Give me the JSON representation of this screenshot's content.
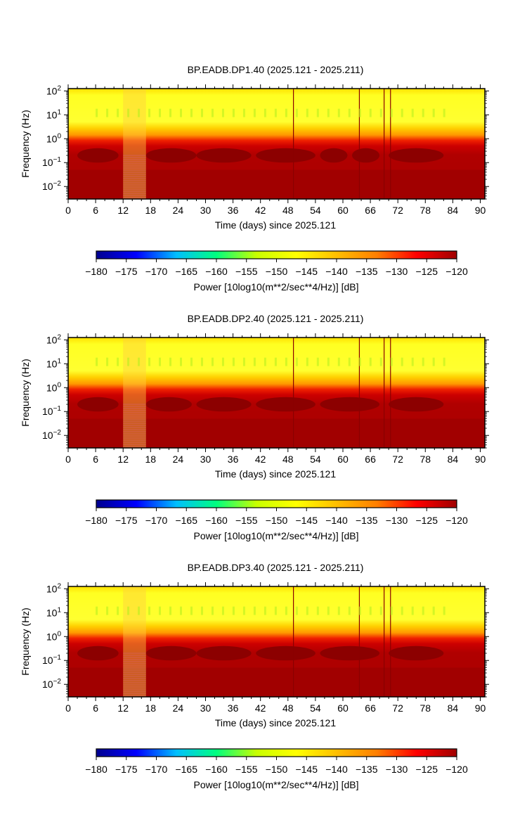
{
  "chart_data": [
    {
      "type": "heatmap",
      "title": "BP.EADB.DP1.40 (2025.121 - 2025.211)",
      "xlabel": "Time (days) since 2025.121",
      "ylabel": "Frequency (Hz)",
      "xlim": [
        0,
        91
      ],
      "x_ticks": [
        0,
        6,
        12,
        18,
        24,
        30,
        36,
        42,
        48,
        54,
        60,
        66,
        72,
        78,
        84,
        90
      ],
      "y_scale": "log",
      "ylim": [
        0.003,
        125
      ],
      "y_ticks": [
        {
          "mantissa": "10",
          "exp": "2",
          "value": 100
        },
        {
          "mantissa": "10",
          "exp": "1",
          "value": 10
        },
        {
          "mantissa": "10",
          "exp": "0",
          "value": 1
        },
        {
          "mantissa": "10",
          "exp": "−1",
          "value": 0.1
        },
        {
          "mantissa": "10",
          "exp": "−2",
          "value": 0.01
        }
      ],
      "microseism_band": [
        {
          "start": 2,
          "end": 11,
          "level": "dark"
        },
        {
          "start": 12,
          "end": 17,
          "level": "gap"
        },
        {
          "start": 17,
          "end": 28,
          "level": "dark"
        },
        {
          "start": 28,
          "end": 40,
          "level": "dark"
        },
        {
          "start": 41,
          "end": 54,
          "level": "dark"
        },
        {
          "start": 55,
          "end": 61,
          "level": "dark"
        },
        {
          "start": 62,
          "end": 68,
          "level": "dark"
        },
        {
          "start": 70,
          "end": 82,
          "level": "dark"
        }
      ],
      "colorbar": {
        "label": "Power [10log10(m**2/sec**4/Hz)] [dB]",
        "range": [
          -180,
          -120
        ],
        "ticks": [
          "−180",
          "−175",
          "−170",
          "−165",
          "−160",
          "−155",
          "−150",
          "−145",
          "−140",
          "−135",
          "−130",
          "−125",
          "−120"
        ],
        "colormap": [
          "#00008f",
          "#0000ff",
          "#00bfff",
          "#00ff7f",
          "#c8ff00",
          "#ffff00",
          "#ffbf00",
          "#ff7f00",
          "#ff0000",
          "#a00000"
        ]
      }
    },
    {
      "type": "heatmap",
      "title": "BP.EADB.DP2.40 (2025.121 - 2025.211)",
      "xlabel": "Time (days) since 2025.121",
      "ylabel": "Frequency (Hz)",
      "xlim": [
        0,
        91
      ],
      "x_ticks": [
        0,
        6,
        12,
        18,
        24,
        30,
        36,
        42,
        48,
        54,
        60,
        66,
        72,
        78,
        84,
        90
      ],
      "y_scale": "log",
      "ylim": [
        0.003,
        125
      ],
      "y_ticks": [
        {
          "mantissa": "10",
          "exp": "2",
          "value": 100
        },
        {
          "mantissa": "10",
          "exp": "1",
          "value": 10
        },
        {
          "mantissa": "10",
          "exp": "0",
          "value": 1
        },
        {
          "mantissa": "10",
          "exp": "−1",
          "value": 0.1
        },
        {
          "mantissa": "10",
          "exp": "−2",
          "value": 0.01
        }
      ],
      "microseism_band": [
        {
          "start": 2,
          "end": 11,
          "level": "dark"
        },
        {
          "start": 12,
          "end": 17,
          "level": "gap"
        },
        {
          "start": 17,
          "end": 27,
          "level": "dark"
        },
        {
          "start": 28,
          "end": 40,
          "level": "dark"
        },
        {
          "start": 41,
          "end": 54,
          "level": "dark"
        },
        {
          "start": 55,
          "end": 68,
          "level": "dark"
        },
        {
          "start": 70,
          "end": 82,
          "level": "dark"
        }
      ],
      "colorbar": {
        "label": "Power [10log10(m**2/sec**4/Hz)] [dB]",
        "range": [
          -180,
          -120
        ],
        "ticks": [
          "−180",
          "−175",
          "−170",
          "−165",
          "−160",
          "−155",
          "−150",
          "−145",
          "−140",
          "−135",
          "−130",
          "−125",
          "−120"
        ],
        "colormap": [
          "#00008f",
          "#0000ff",
          "#00bfff",
          "#00ff7f",
          "#c8ff00",
          "#ffff00",
          "#ffbf00",
          "#ff7f00",
          "#ff0000",
          "#a00000"
        ]
      }
    },
    {
      "type": "heatmap",
      "title": "BP.EADB.DP3.40 (2025.121 - 2025.211)",
      "xlabel": "Time (days) since 2025.121",
      "ylabel": "Frequency (Hz)",
      "xlim": [
        0,
        91
      ],
      "x_ticks": [
        0,
        6,
        12,
        18,
        24,
        30,
        36,
        42,
        48,
        54,
        60,
        66,
        72,
        78,
        84,
        90
      ],
      "y_scale": "log",
      "ylim": [
        0.003,
        125
      ],
      "y_ticks": [
        {
          "mantissa": "10",
          "exp": "2",
          "value": 100
        },
        {
          "mantissa": "10",
          "exp": "1",
          "value": 10
        },
        {
          "mantissa": "10",
          "exp": "0",
          "value": 1
        },
        {
          "mantissa": "10",
          "exp": "−1",
          "value": 0.1
        },
        {
          "mantissa": "10",
          "exp": "−2",
          "value": 0.01
        }
      ],
      "microseism_band": [
        {
          "start": 2,
          "end": 11,
          "level": "dark"
        },
        {
          "start": 12,
          "end": 17,
          "level": "gap"
        },
        {
          "start": 17,
          "end": 28,
          "level": "dark"
        },
        {
          "start": 28,
          "end": 40,
          "level": "dark"
        },
        {
          "start": 41,
          "end": 54,
          "level": "dark"
        },
        {
          "start": 55,
          "end": 68,
          "level": "dark"
        },
        {
          "start": 70,
          "end": 82,
          "level": "dark"
        }
      ],
      "colorbar": {
        "label": "Power [10log10(m**2/sec**4/Hz)] [dB]",
        "range": [
          -180,
          -120
        ],
        "ticks": [
          "−180",
          "−175",
          "−170",
          "−165",
          "−160",
          "−155",
          "−150",
          "−145",
          "−140",
          "−135",
          "−130",
          "−125",
          "−120"
        ],
        "colormap": [
          "#00008f",
          "#0000ff",
          "#00bfff",
          "#00ff7f",
          "#c8ff00",
          "#ffff00",
          "#ffbf00",
          "#ff7f00",
          "#ff0000",
          "#a00000"
        ]
      }
    }
  ]
}
